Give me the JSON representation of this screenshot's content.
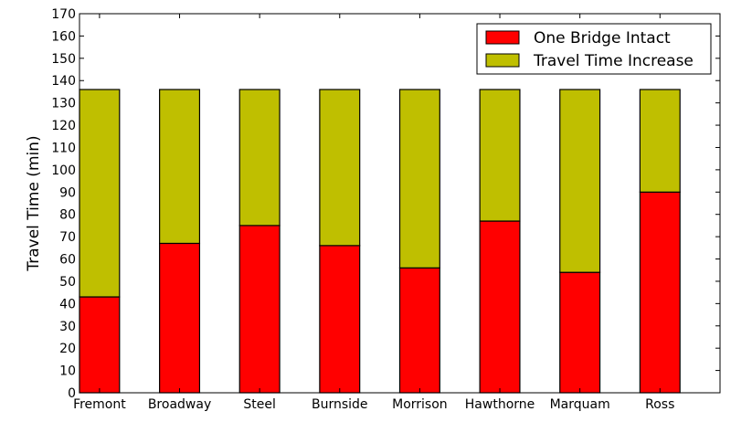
{
  "chart_data": {
    "type": "bar",
    "stacked": true,
    "title": "",
    "xlabel": "",
    "ylabel": "Travel Time (min)",
    "ylim": [
      0,
      170
    ],
    "ytick_step": 10,
    "grid": false,
    "legend_position": "top-right",
    "categories": [
      "Fremont",
      "Broadway",
      "Steel",
      "Burnside",
      "Morrison",
      "Hawthorne",
      "Marquam",
      "Ross"
    ],
    "series": [
      {
        "name": "One Bridge Intact",
        "color": "#ff0000",
        "values": [
          43,
          67,
          75,
          66,
          56,
          77,
          54,
          90
        ]
      },
      {
        "name": "Travel Time Increase",
        "color": "#bfbf00",
        "values": [
          93,
          69,
          61,
          70,
          80,
          59,
          82,
          46
        ]
      }
    ]
  }
}
